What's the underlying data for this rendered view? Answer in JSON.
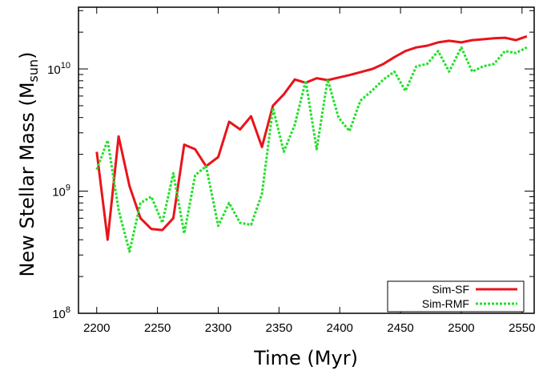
{
  "chart_data": {
    "type": "line",
    "xlabel": "Time (Myr)",
    "ylabel_main": "New Stellar Mass (M",
    "ylabel_sub": "sun",
    "ylabel_close": ")",
    "xlim": [
      2185,
      2560
    ],
    "ylim": [
      100000000,
      32000000000
    ],
    "yscale": "log",
    "xticks": [
      2200,
      2250,
      2300,
      2350,
      2400,
      2450,
      2500,
      2550
    ],
    "xtick_labels": [
      "2200",
      "2250",
      "2300",
      "2350",
      "2400",
      "2450",
      "2500",
      "2550"
    ],
    "yticks": [
      {
        "value": 100000000,
        "base": "10",
        "exp": "8"
      },
      {
        "value": 1000000000,
        "base": "10",
        "exp": "9"
      },
      {
        "value": 10000000000,
        "base": "10",
        "exp": "10"
      }
    ],
    "legend_position": "bottom-right",
    "series": [
      {
        "name": "Sim-SF",
        "color": "#e8141b",
        "dash": "solid",
        "x": [
          2200,
          2209,
          2218,
          2227,
          2236,
          2245,
          2254,
          2263,
          2272,
          2281,
          2290,
          2300,
          2309,
          2318,
          2327,
          2336,
          2345,
          2354,
          2363,
          2372,
          2381,
          2390,
          2399,
          2408,
          2417,
          2427,
          2436,
          2445,
          2454,
          2463,
          2472,
          2481,
          2490,
          2500,
          2509,
          2518,
          2527,
          2536,
          2545,
          2554
        ],
        "values": [
          2100000000.0,
          400000000.0,
          2800000000.0,
          1100000000.0,
          600000000.0,
          490000000.0,
          480000000.0,
          600000000.0,
          2400000000.0,
          2200000000.0,
          1600000000.0,
          1900000000.0,
          3700000000.0,
          3200000000.0,
          4100000000.0,
          2300000000.0,
          5000000000.0,
          6200000000.0,
          8200000000.0,
          7700000000.0,
          8400000000.0,
          8100000000.0,
          8500000000.0,
          8900000000.0,
          9400000000.0,
          10000000000.0,
          11000000000.0,
          12500000000.0,
          14000000000.0,
          15000000000.0,
          15500000000.0,
          16500000000.0,
          17000000000.0,
          16500000000.0,
          17200000000.0,
          17500000000.0,
          17800000000.0,
          18000000000.0,
          17200000000.0,
          18500000000.0
        ]
      },
      {
        "name": "Sim-RMF",
        "color": "#22e02a",
        "dash": "dotted",
        "x": [
          2200,
          2209,
          2218,
          2227,
          2236,
          2245,
          2254,
          2263,
          2272,
          2281,
          2290,
          2300,
          2309,
          2318,
          2327,
          2336,
          2345,
          2354,
          2363,
          2372,
          2381,
          2390,
          2399,
          2408,
          2417,
          2427,
          2436,
          2445,
          2454,
          2463,
          2472,
          2481,
          2490,
          2500,
          2509,
          2518,
          2527,
          2536,
          2545,
          2554
        ],
        "values": [
          1500000000.0,
          2600000000.0,
          700000000.0,
          320000000.0,
          800000000.0,
          900000000.0,
          550000000.0,
          1400000000.0,
          450000000.0,
          1350000000.0,
          1600000000.0,
          520000000.0,
          800000000.0,
          550000000.0,
          530000000.0,
          950000000.0,
          4800000000.0,
          2100000000.0,
          3500000000.0,
          8000000000.0,
          2200000000.0,
          8200000000.0,
          4000000000.0,
          3100000000.0,
          5500000000.0,
          6700000000.0,
          8200000000.0,
          9500000000.0,
          6600000000.0,
          10500000000.0,
          11000000000.0,
          14000000000.0,
          9500000000.0,
          15000000000.0,
          9500000000.0,
          10500000000.0,
          11000000000.0,
          14000000000.0,
          13500000000.0,
          15000000000.0
        ]
      }
    ]
  }
}
